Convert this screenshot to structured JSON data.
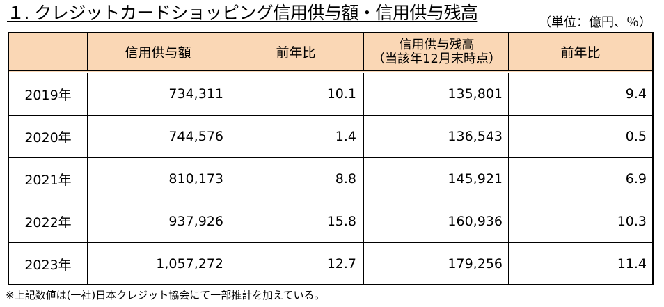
{
  "title": "１. クレジットカードショッピング信用供与額・信用供与残高",
  "unit": "（単位：億円、％）",
  "headers": {
    "year": "",
    "credit_amount": "信用供与額",
    "amount_yoy": "前年比",
    "balance_line1": "信用供与残高",
    "balance_line2": "（当該年12月末時点）",
    "balance_yoy": "前年比"
  },
  "rows": [
    {
      "year": "2019年",
      "credit_amount": "734,311",
      "amount_yoy": "10.1",
      "balance": "135,801",
      "balance_yoy": "9.4"
    },
    {
      "year": "2020年",
      "credit_amount": "744,576",
      "amount_yoy": "1.4",
      "balance": "136,543",
      "balance_yoy": "0.5"
    },
    {
      "year": "2021年",
      "credit_amount": "810,173",
      "amount_yoy": "8.8",
      "balance": "145,921",
      "balance_yoy": "6.9"
    },
    {
      "year": "2022年",
      "credit_amount": "937,926",
      "amount_yoy": "15.8",
      "balance": "160,936",
      "balance_yoy": "10.3"
    },
    {
      "year": "2023年",
      "credit_amount": "1,057,272",
      "amount_yoy": "12.7",
      "balance": "179,256",
      "balance_yoy": "11.4"
    }
  ],
  "footnote": "※上記数値は(一社)日本クレジット協会にて一部推計を加えている。",
  "colors": {
    "header_bg": "#fad7b5",
    "border": "#000000"
  }
}
